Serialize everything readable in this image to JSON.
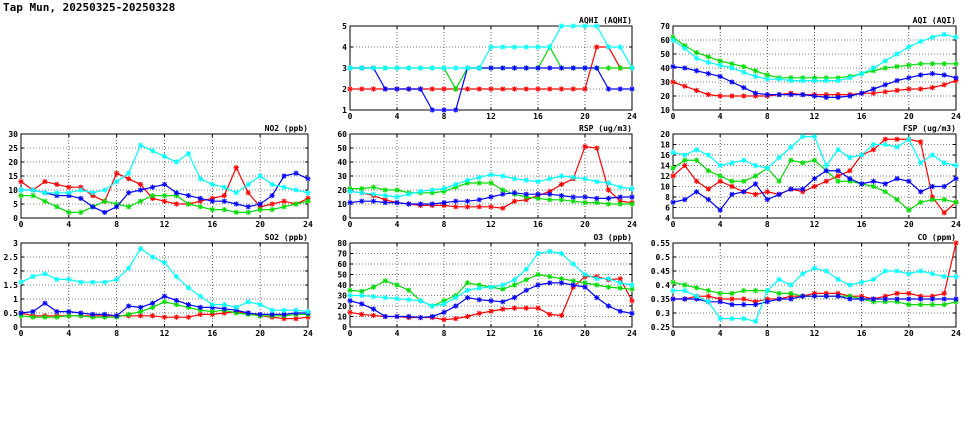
{
  "page": {
    "title": "Tap Mun, 20250325-20250328"
  },
  "colors": {
    "series": [
      "#ff0000",
      "#00dd00",
      "#0000ff",
      "#00ffff"
    ],
    "grid": "#000000"
  },
  "chart_data": [
    {
      "id": "aqhi",
      "type": "line",
      "title": "AQHI (AQHI)",
      "xlim": [
        0,
        24
      ],
      "xticks": [
        0,
        4,
        8,
        12,
        16,
        20,
        24
      ],
      "ylim": [
        1,
        5
      ],
      "yticks": [
        1,
        2,
        3,
        4,
        5
      ],
      "grid": true,
      "series": [
        {
          "color": "#ff0000",
          "values": [
            2,
            2,
            2,
            2,
            2,
            2,
            2,
            2,
            2,
            2,
            2,
            2,
            2,
            2,
            2,
            2,
            2,
            2,
            2,
            2,
            2,
            4,
            4,
            3,
            3
          ]
        },
        {
          "color": "#00dd00",
          "values": [
            3,
            3,
            3,
            3,
            3,
            3,
            3,
            3,
            3,
            2,
            3,
            3,
            3,
            3,
            3,
            3,
            3,
            4,
            3,
            3,
            3,
            3,
            3,
            3,
            3
          ]
        },
        {
          "color": "#0000ff",
          "values": [
            3,
            3,
            3,
            2,
            2,
            2,
            2,
            1,
            1,
            1,
            3,
            3,
            3,
            3,
            3,
            3,
            3,
            3,
            3,
            3,
            3,
            3,
            2,
            2,
            2
          ]
        },
        {
          "color": "#00ffff",
          "values": [
            3,
            3,
            3,
            3,
            3,
            3,
            3,
            3,
            3,
            3,
            3,
            3,
            4,
            4,
            4,
            4,
            4,
            4,
            5,
            5,
            5,
            5,
            4,
            4,
            3
          ]
        }
      ]
    },
    {
      "id": "aqi",
      "type": "line",
      "title": "AQI (AQI)",
      "xlim": [
        0,
        24
      ],
      "xticks": [
        0,
        4,
        8,
        12,
        16,
        20,
        24
      ],
      "ylim": [
        10,
        70
      ],
      "yticks": [
        10,
        20,
        30,
        40,
        50,
        60,
        70
      ],
      "grid": true,
      "series": [
        {
          "color": "#ff0000",
          "values": [
            30,
            27,
            24,
            21,
            20,
            20,
            20,
            20,
            20,
            21,
            22,
            21,
            21,
            21,
            21,
            21,
            22,
            22,
            23,
            24,
            25,
            25,
            26,
            28,
            31
          ]
        },
        {
          "color": "#00dd00",
          "values": [
            62,
            56,
            51,
            48,
            45,
            43,
            41,
            38,
            35,
            33,
            33,
            33,
            33,
            33,
            33,
            34,
            36,
            38,
            40,
            41,
            42,
            43,
            43,
            43,
            43
          ]
        },
        {
          "color": "#0000ff",
          "values": [
            41,
            40,
            38,
            36,
            34,
            30,
            26,
            22,
            21,
            21,
            21,
            21,
            20,
            19,
            19,
            20,
            22,
            25,
            28,
            31,
            33,
            35,
            36,
            35,
            33
          ]
        },
        {
          "color": "#00ffff",
          "values": [
            60,
            54,
            47,
            44,
            42,
            40,
            37,
            34,
            32,
            32,
            31,
            31,
            31,
            31,
            31,
            33,
            36,
            40,
            45,
            50,
            55,
            59,
            62,
            64,
            62
          ]
        }
      ]
    },
    {
      "id": "no2",
      "type": "line",
      "title": "NO2 (ppb)",
      "xlim": [
        0,
        24
      ],
      "xticks": [
        0,
        4,
        8,
        12,
        16,
        20,
        24
      ],
      "ylim": [
        0,
        30
      ],
      "yticks": [
        0,
        5,
        10,
        15,
        20,
        25,
        30
      ],
      "grid": true,
      "series": [
        {
          "color": "#ff0000",
          "values": [
            13,
            10,
            13,
            12,
            11,
            11,
            8,
            6,
            16,
            14,
            12,
            7,
            6,
            5,
            5,
            6,
            7,
            8,
            18,
            9,
            4,
            5,
            6,
            5,
            7
          ]
        },
        {
          "color": "#00dd00",
          "values": [
            8,
            8,
            6,
            4,
            2,
            2,
            4,
            6,
            5,
            4,
            6,
            8,
            8,
            8,
            5,
            4,
            3,
            3,
            2,
            2,
            3,
            3,
            4,
            5,
            6
          ]
        },
        {
          "color": "#0000ff",
          "values": [
            10,
            10,
            9,
            8,
            8,
            7,
            4,
            2,
            4,
            9,
            10,
            11,
            12,
            9,
            8,
            7,
            6,
            6,
            5,
            4,
            5,
            8,
            15,
            16,
            14
          ]
        },
        {
          "color": "#00ffff",
          "values": [
            10,
            10,
            9,
            9,
            9,
            10,
            9,
            10,
            13,
            16,
            26,
            24,
            22,
            20,
            23,
            14,
            12,
            11,
            9,
            12,
            15,
            12,
            11,
            10,
            9
          ]
        }
      ]
    },
    {
      "id": "rsp",
      "type": "line",
      "title": "RSP (ug/m3)",
      "xlim": [
        0,
        24
      ],
      "xticks": [
        0,
        4,
        8,
        12,
        16,
        20,
        24
      ],
      "ylim": [
        0,
        60
      ],
      "yticks": [
        0,
        10,
        20,
        30,
        40,
        50,
        60
      ],
      "grid": true,
      "series": [
        {
          "color": "#ff0000",
          "values": [
            19,
            18,
            16,
            13,
            11,
            10,
            9,
            9,
            9,
            8,
            8,
            8,
            8,
            7,
            12,
            13,
            16,
            19,
            24,
            28,
            51,
            50,
            20,
            12,
            11
          ]
        },
        {
          "color": "#00dd00",
          "values": [
            21,
            21,
            22,
            20,
            20,
            18,
            18,
            18,
            19,
            22,
            25,
            25,
            25,
            20,
            17,
            15,
            14,
            13,
            13,
            12,
            11,
            11,
            10,
            10,
            10
          ]
        },
        {
          "color": "#0000ff",
          "values": [
            11,
            12,
            12,
            11,
            11,
            10,
            10,
            10,
            11,
            12,
            12,
            13,
            15,
            17,
            18,
            17,
            17,
            17,
            16,
            15,
            15,
            14,
            14,
            15,
            15
          ]
        },
        {
          "color": "#00ffff",
          "values": [
            19,
            18,
            17,
            16,
            15,
            17,
            19,
            20,
            21,
            24,
            27,
            29,
            31,
            30,
            28,
            27,
            26,
            28,
            30,
            29,
            28,
            26,
            25,
            22,
            21
          ]
        }
      ]
    },
    {
      "id": "fsp",
      "type": "line",
      "title": "FSP (ug/m3)",
      "xlim": [
        0,
        24
      ],
      "xticks": [
        0,
        4,
        8,
        12,
        16,
        20,
        24
      ],
      "ylim": [
        4,
        20
      ],
      "yticks": [
        4,
        6,
        8,
        10,
        12,
        14,
        16,
        18,
        20
      ],
      "grid": true,
      "series": [
        {
          "color": "#ff0000",
          "values": [
            12,
            14,
            11,
            9.5,
            11,
            10,
            9,
            8.5,
            9,
            8.5,
            9.5,
            9,
            10,
            11,
            12,
            13,
            16,
            17,
            19,
            19,
            19,
            18.5,
            8,
            5,
            7
          ]
        },
        {
          "color": "#00dd00",
          "values": [
            13.5,
            15,
            15,
            13,
            12,
            11,
            11,
            12,
            13.5,
            11,
            15,
            14.5,
            15,
            13,
            11,
            11,
            10.5,
            10,
            9,
            7.5,
            5.5,
            7,
            7.5,
            7.5,
            7
          ]
        },
        {
          "color": "#0000ff",
          "values": [
            7,
            7.5,
            9,
            7.5,
            5.5,
            8.5,
            9,
            10.5,
            7.5,
            8.5,
            9.5,
            9.5,
            11.5,
            13,
            13,
            11.5,
            10.5,
            11,
            10.5,
            11.5,
            11,
            9,
            10,
            10,
            11.5
          ]
        },
        {
          "color": "#00ffff",
          "values": [
            16.5,
            16,
            17,
            16,
            14,
            14.5,
            15,
            14,
            13.5,
            15.5,
            17.5,
            19.5,
            19.5,
            14,
            17,
            15.5,
            16,
            18,
            18,
            17.5,
            19,
            14.5,
            16,
            14.5,
            14
          ]
        }
      ]
    },
    {
      "id": "so2",
      "type": "line",
      "title": "SO2 (ppb)",
      "xlim": [
        0,
        24
      ],
      "xticks": [
        0,
        4,
        8,
        12,
        16,
        20,
        24
      ],
      "ylim": [
        0,
        3
      ],
      "yticks": [
        0,
        0.5,
        1,
        1.5,
        2,
        2.5,
        3
      ],
      "grid": true,
      "series": [
        {
          "color": "#ff0000",
          "values": [
            0.5,
            0.4,
            0.4,
            0.4,
            0.4,
            0.4,
            0.4,
            0.4,
            0.4,
            0.4,
            0.4,
            0.4,
            0.35,
            0.35,
            0.35,
            0.45,
            0.45,
            0.5,
            0.55,
            0.5,
            0.4,
            0.35,
            0.3,
            0.3,
            0.35
          ]
        },
        {
          "color": "#00dd00",
          "values": [
            0.4,
            0.35,
            0.35,
            0.35,
            0.4,
            0.4,
            0.35,
            0.35,
            0.35,
            0.45,
            0.55,
            0.7,
            0.9,
            0.8,
            0.7,
            0.6,
            0.55,
            0.6,
            0.5,
            0.45,
            0.4,
            0.4,
            0.4,
            0.45,
            0.45
          ]
        },
        {
          "color": "#0000ff",
          "values": [
            0.5,
            0.55,
            0.85,
            0.55,
            0.55,
            0.5,
            0.45,
            0.45,
            0.4,
            0.75,
            0.7,
            0.85,
            1.1,
            0.95,
            0.8,
            0.7,
            0.7,
            0.65,
            0.6,
            0.5,
            0.45,
            0.45,
            0.45,
            0.5,
            0.5
          ]
        },
        {
          "color": "#00ffff",
          "values": [
            1.6,
            1.8,
            1.9,
            1.7,
            1.7,
            1.6,
            1.6,
            1.6,
            1.7,
            2.1,
            2.8,
            2.5,
            2.3,
            1.8,
            1.4,
            1.1,
            0.8,
            0.8,
            0.7,
            0.9,
            0.8,
            0.6,
            0.6,
            0.6,
            0.55
          ]
        }
      ]
    },
    {
      "id": "o3",
      "type": "line",
      "title": "O3 (ppb)",
      "xlim": [
        0,
        24
      ],
      "xticks": [
        0,
        4,
        8,
        12,
        16,
        20,
        24
      ],
      "ylim": [
        0,
        80
      ],
      "yticks": [
        0,
        10,
        20,
        30,
        40,
        50,
        60,
        70,
        80
      ],
      "grid": true,
      "series": [
        {
          "color": "#ff0000",
          "values": [
            14,
            12,
            11,
            10,
            10,
            9,
            9,
            9,
            7,
            8,
            10,
            13,
            15,
            17,
            18,
            18,
            18,
            12,
            11,
            38,
            48,
            48,
            45,
            46,
            25
          ]
        },
        {
          "color": "#00dd00",
          "values": [
            35,
            34,
            38,
            44,
            40,
            35,
            25,
            20,
            25,
            30,
            42,
            40,
            38,
            36,
            40,
            45,
            50,
            48,
            46,
            44,
            42,
            40,
            38,
            37,
            36
          ]
        },
        {
          "color": "#0000ff",
          "values": [
            25,
            22,
            17,
            10,
            10,
            10,
            9,
            10,
            14,
            20,
            28,
            26,
            25,
            24,
            28,
            35,
            40,
            42,
            42,
            40,
            38,
            28,
            20,
            15,
            13
          ]
        },
        {
          "color": "#00ffff",
          "values": [
            30,
            30,
            29,
            28,
            27,
            26,
            25,
            20,
            22,
            28,
            35,
            37,
            38,
            40,
            45,
            55,
            70,
            72,
            70,
            60,
            50,
            46,
            46,
            42,
            40
          ]
        }
      ]
    },
    {
      "id": "co",
      "type": "line",
      "title": "CO (ppm)",
      "xlim": [
        0,
        24
      ],
      "xticks": [
        0,
        4,
        8,
        12,
        16,
        20,
        24
      ],
      "ylim": [
        0.25,
        0.55
      ],
      "yticks": [
        0.25,
        0.3,
        0.35,
        0.4,
        0.45,
        0.5,
        0.55
      ],
      "grid": true,
      "series": [
        {
          "color": "#ff0000",
          "values": [
            0.35,
            0.35,
            0.36,
            0.36,
            0.35,
            0.35,
            0.35,
            0.34,
            0.35,
            0.35,
            0.36,
            0.36,
            0.37,
            0.37,
            0.37,
            0.36,
            0.36,
            0.35,
            0.36,
            0.37,
            0.37,
            0.36,
            0.36,
            0.37,
            0.55
          ]
        },
        {
          "color": "#00dd00",
          "values": [
            0.41,
            0.4,
            0.39,
            0.38,
            0.37,
            0.37,
            0.38,
            0.38,
            0.38,
            0.37,
            0.37,
            0.36,
            0.36,
            0.36,
            0.36,
            0.36,
            0.35,
            0.34,
            0.34,
            0.34,
            0.33,
            0.33,
            0.33,
            0.33,
            0.34
          ]
        },
        {
          "color": "#0000ff",
          "values": [
            0.35,
            0.35,
            0.35,
            0.34,
            0.34,
            0.33,
            0.33,
            0.33,
            0.34,
            0.35,
            0.35,
            0.36,
            0.36,
            0.36,
            0.36,
            0.35,
            0.35,
            0.35,
            0.35,
            0.35,
            0.35,
            0.35,
            0.35,
            0.35,
            0.35
          ]
        },
        {
          "color": "#00ffff",
          "values": [
            0.38,
            0.38,
            0.36,
            0.34,
            0.28,
            0.28,
            0.28,
            0.27,
            0.38,
            0.42,
            0.4,
            0.44,
            0.46,
            0.45,
            0.42,
            0.4,
            0.41,
            0.42,
            0.45,
            0.45,
            0.44,
            0.45,
            0.44,
            0.43,
            0.43
          ]
        }
      ]
    }
  ]
}
